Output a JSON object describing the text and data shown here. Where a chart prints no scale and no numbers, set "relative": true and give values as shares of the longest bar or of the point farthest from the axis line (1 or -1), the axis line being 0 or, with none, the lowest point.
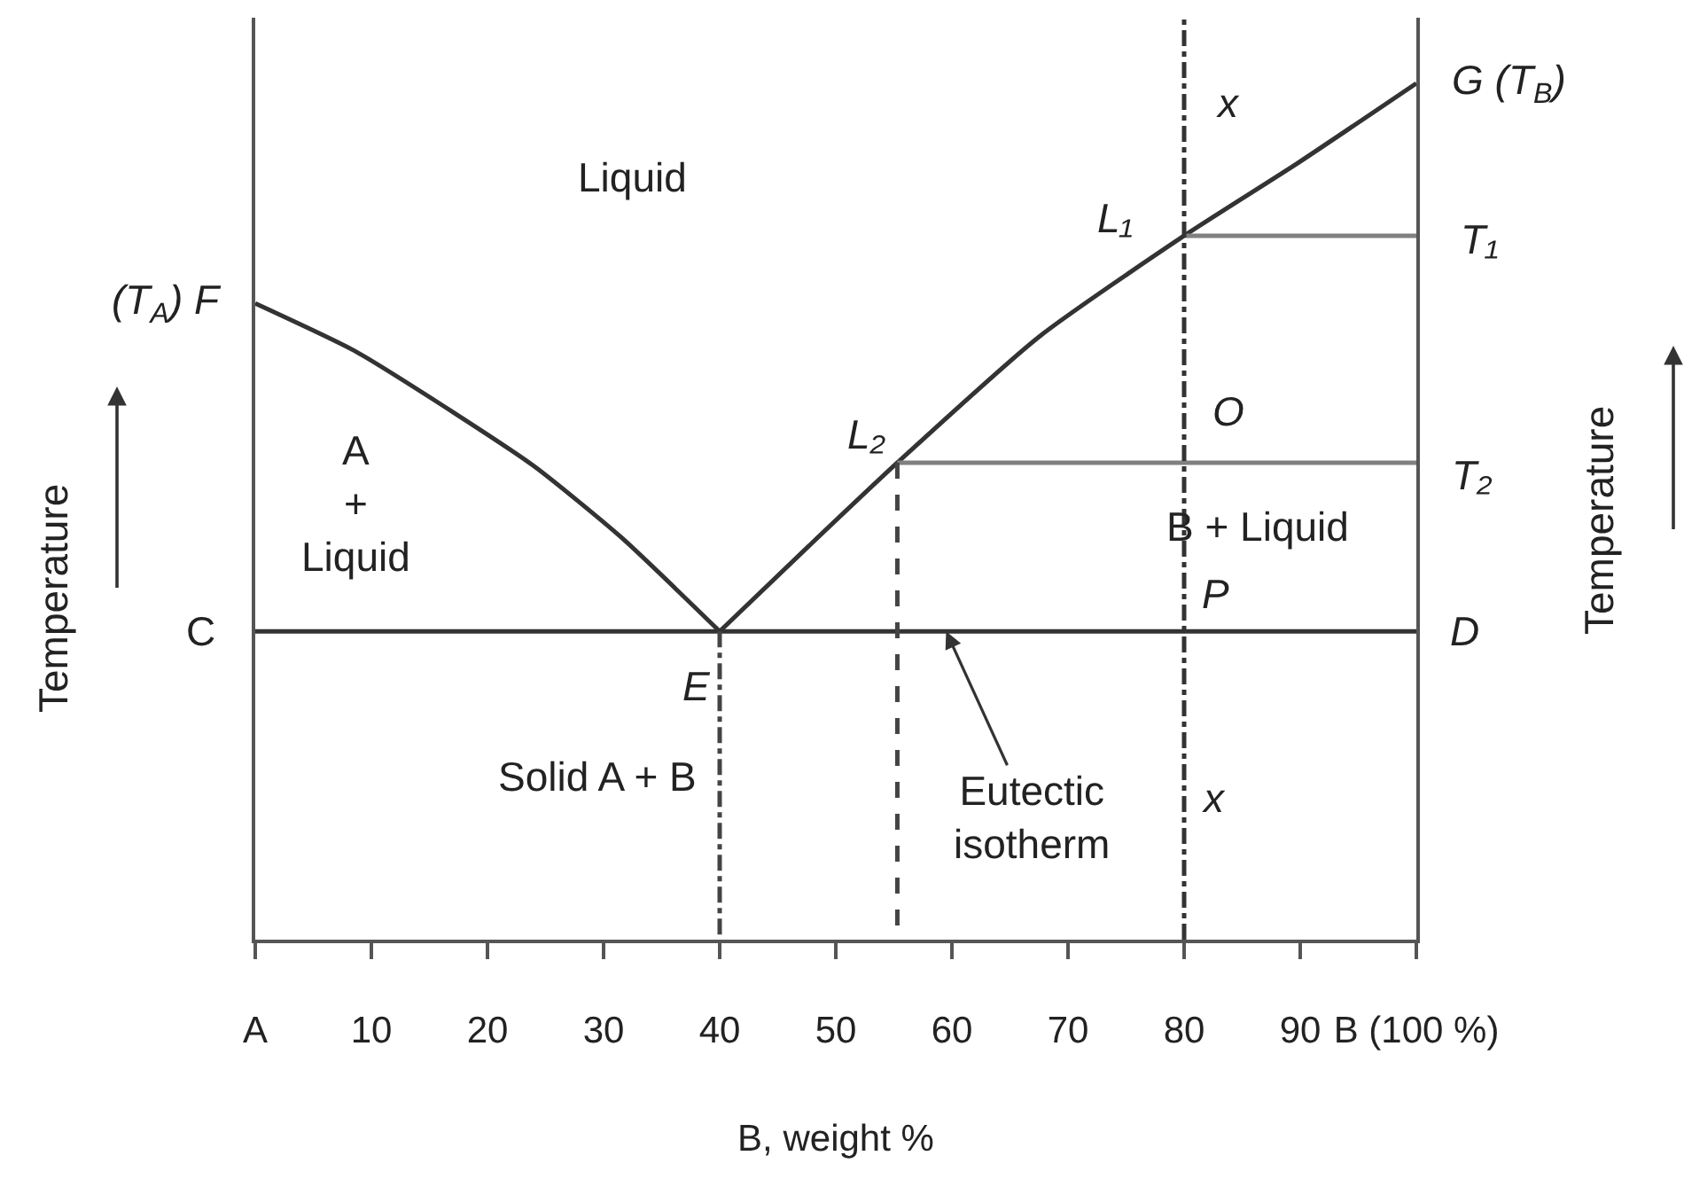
{
  "chart_data": {
    "type": "line",
    "relative": true,
    "tick_labels": "x",
    "xlim": [
      0,
      100
    ],
    "xticks": [
      {
        "value": 0,
        "label": "A"
      },
      10,
      20,
      30,
      40,
      50,
      60,
      70,
      80,
      90,
      {
        "value": 100,
        "label": "B (100 %)"
      }
    ],
    "xlabel": "B, weight %",
    "ylabel": "Temperature",
    "y2label": "Temperature",
    "series": [
      {
        "x": [
          0,
          8.5,
          16,
          24,
          31.5,
          40
        ],
        "values": [
          0.743,
          0.688,
          0.625,
          0.553,
          0.47,
          0.36
        ],
        "color": "#333333",
        "line_style": "solid"
      },
      {
        "x": [
          40,
          47.7,
          55.3,
          67.5,
          80,
          89.8,
          100
        ],
        "values": [
          0.36,
          0.46,
          0.557,
          0.704,
          0.822,
          0.907,
          1.0
        ],
        "color": "#333333",
        "line_style": "solid"
      },
      {
        "x": [
          0,
          100
        ],
        "values": [
          0.36,
          0.36
        ],
        "color": "#333333",
        "line_style": "solid"
      },
      {
        "x": [
          80,
          100
        ],
        "values": [
          0.822,
          0.822
        ],
        "color": "#808080",
        "line_style": "solid"
      },
      {
        "x": [
          55.3,
          100
        ],
        "values": [
          0.557,
          0.557
        ],
        "color": "#808080",
        "line_style": "solid"
      },
      {
        "x": [
          40,
          40
        ],
        "values": [
          0.36,
          0
        ],
        "color": "#444444",
        "line_style": "dashdot"
      },
      {
        "x": [
          55.3,
          55.3
        ],
        "values": [
          0.557,
          0
        ],
        "color": "#444444",
        "line_style": "dashed"
      }
    ],
    "ref_lines": [
      {
        "axis": "x",
        "value": 80,
        "color": "#333333",
        "line_style": "dashdot"
      }
    ],
    "annotations": [
      "Liquid",
      "A\n+\nLiquid",
      "Solid A + B",
      "B + Liquid",
      {
        "text": "Eutectic\nisotherm",
        "x": 59.5,
        "y": 0.36
      },
      {
        "text": "(T$_{A}$) F",
        "x": 0,
        "y": 0.743
      },
      {
        "text": "C",
        "x": 0,
        "y": 0.36
      },
      {
        "text": "E",
        "x": 40,
        "y": 0.36
      },
      {
        "text": "L₁",
        "x": 80,
        "y": 0.822
      },
      {
        "text": "L₂",
        "x": 55.3,
        "y": 0.557
      },
      {
        "text": "O",
        "x": 80,
        "y": 0.557
      },
      {
        "text": "P",
        "x": 80,
        "y": 0.36
      },
      {
        "text": "x",
        "x": 80,
        "y": 0.977
      },
      {
        "text": "x",
        "x": 80,
        "y": 0.166
      },
      {
        "text": "G (T$_{B}$)",
        "x": 100,
        "y": 1.0
      },
      {
        "text": "T₁",
        "x": 100,
        "y": 0.822
      },
      {
        "text": "T₂",
        "x": 100,
        "y": 0.557
      },
      {
        "text": "D",
        "x": 100,
        "y": 0.36
      }
    ]
  }
}
